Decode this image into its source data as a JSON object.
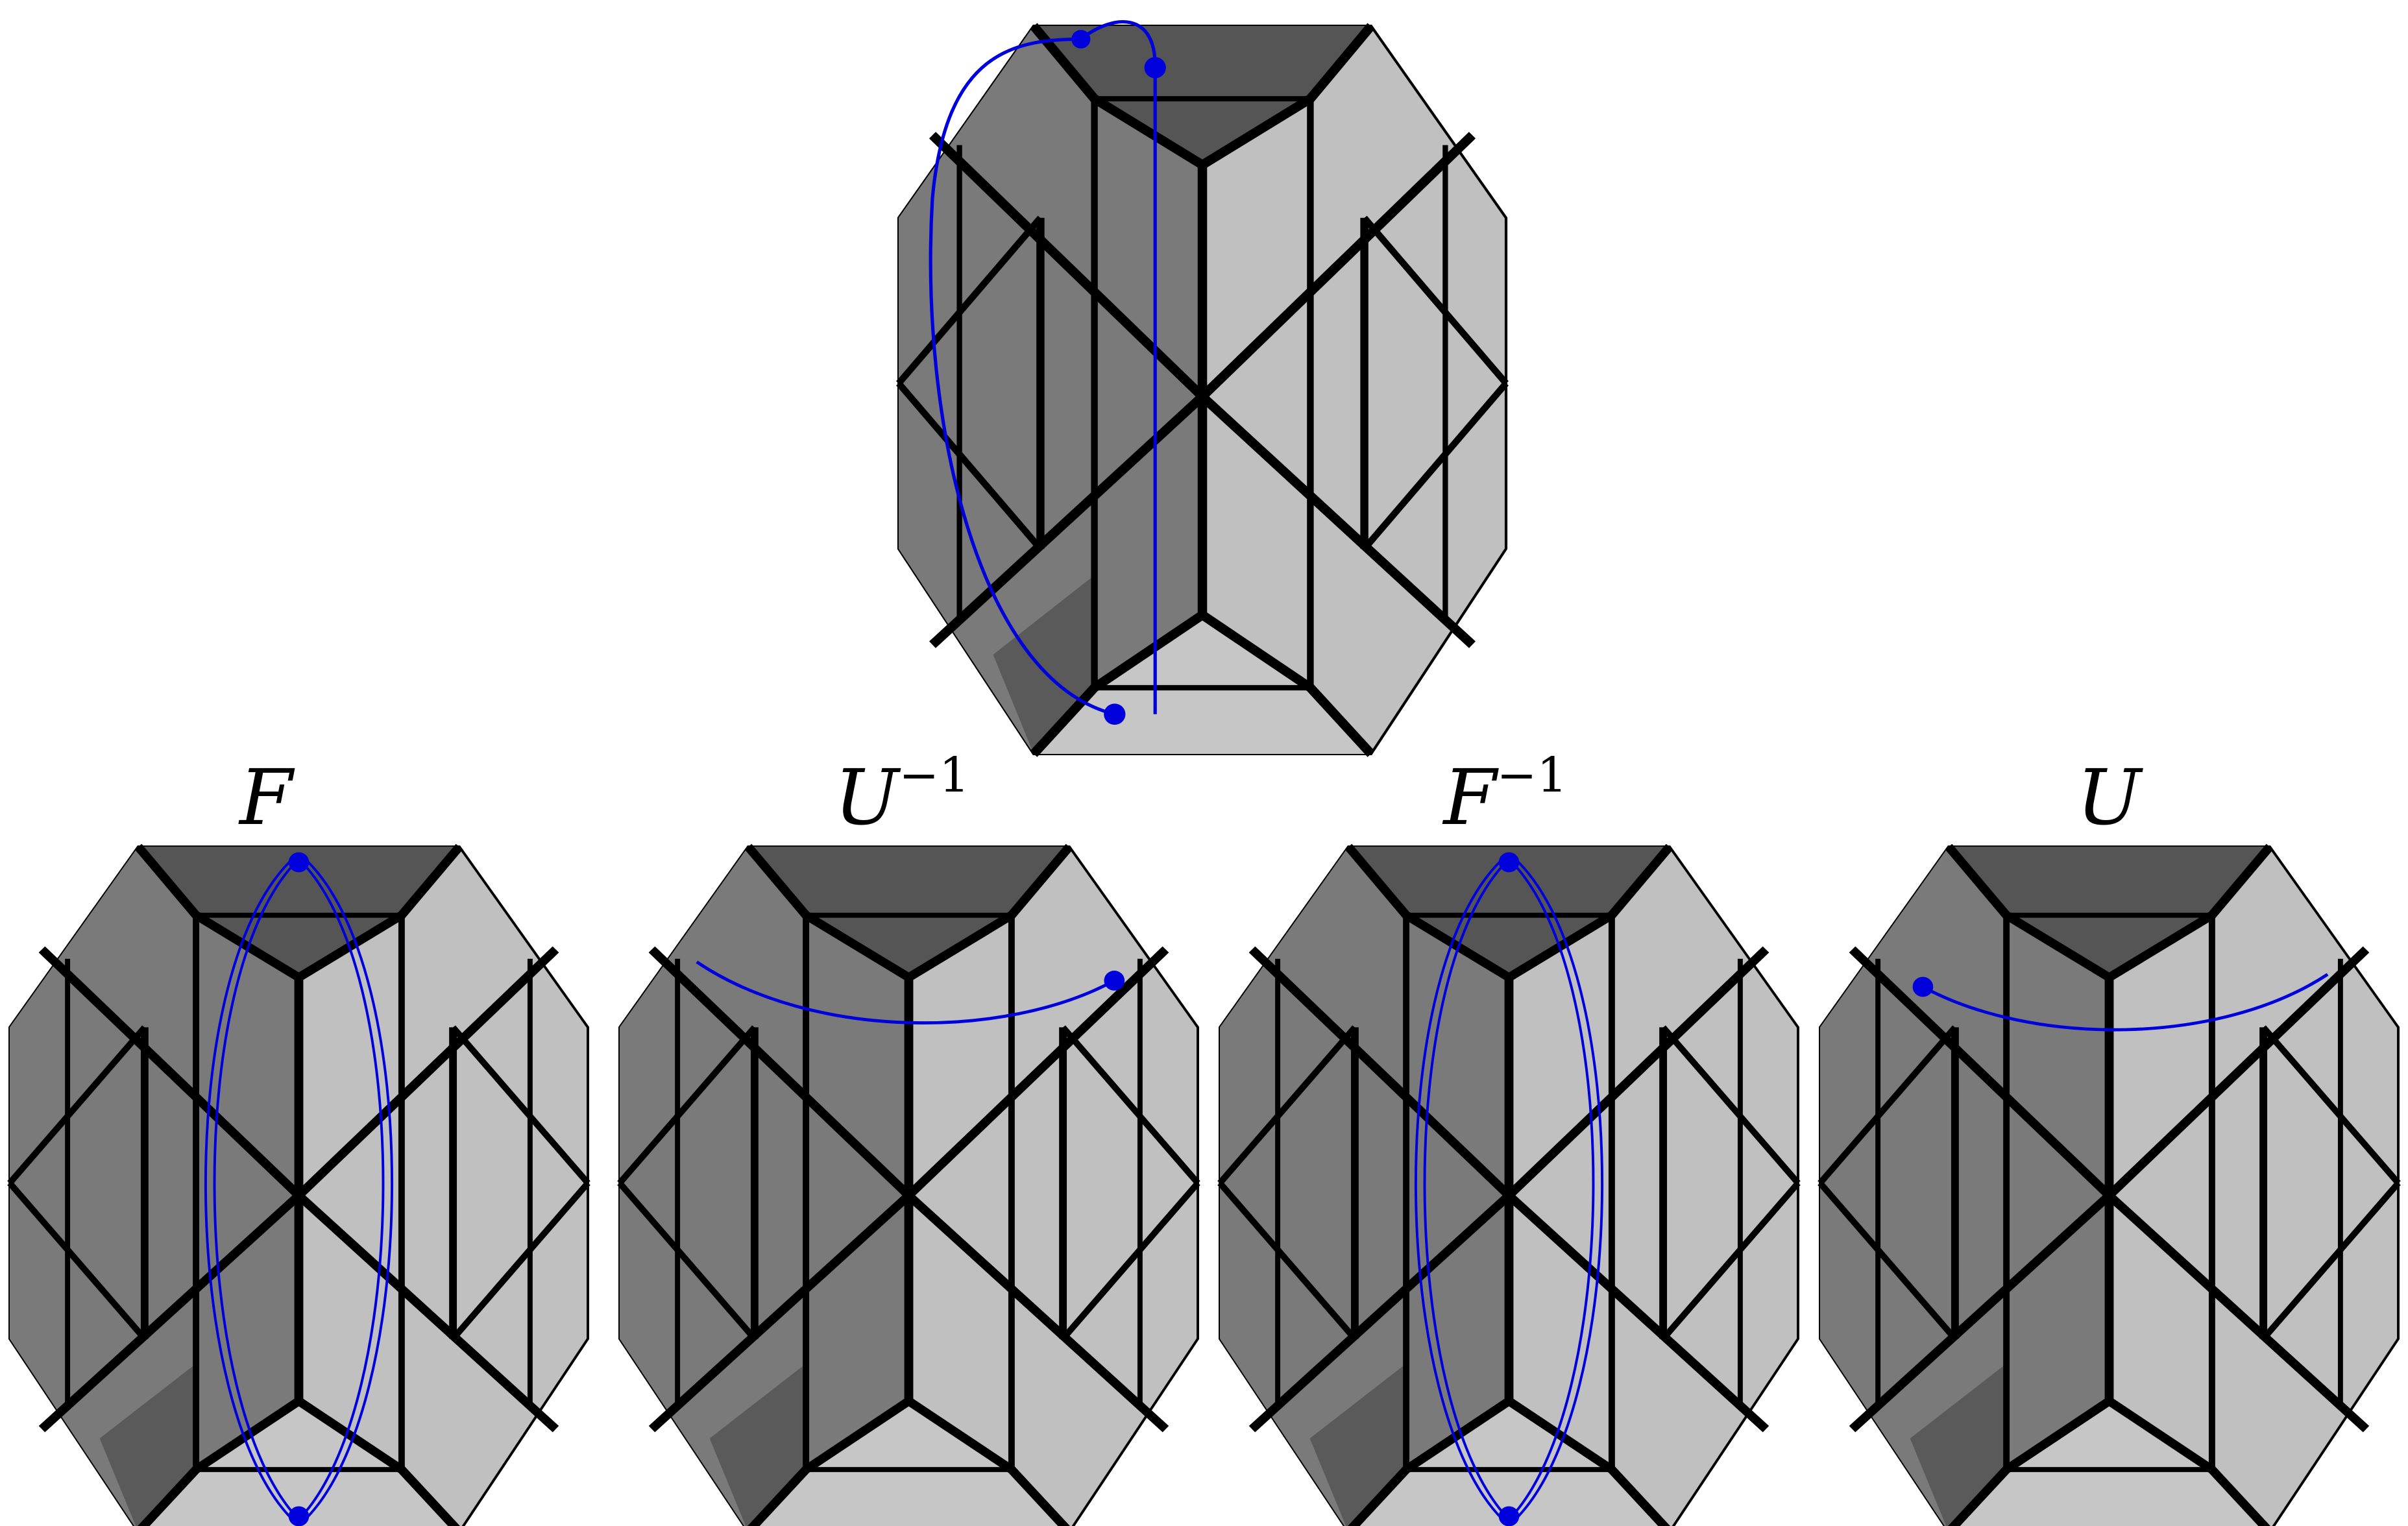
{
  "figure": {
    "title": "",
    "colors": {
      "face_dark": "#4d4d4d",
      "face_mid": "#7a7a7a",
      "face_light": "#c0c0c0",
      "edge": "#000000",
      "path": "#0000dd",
      "background": "#ffffff"
    },
    "panels": [
      {
        "id": "initial",
        "label_base": "",
        "label_exp": "",
        "path": "initial-loop"
      },
      {
        "id": "move-f",
        "label_base": "F",
        "label_exp": "",
        "path": "vertical-loop"
      },
      {
        "id": "move-u-inv",
        "label_base": "U",
        "label_exp": "−1",
        "path": "horizontal-arc-right"
      },
      {
        "id": "move-f-inv",
        "label_base": "F",
        "label_exp": "−1",
        "path": "vertical-loop"
      },
      {
        "id": "move-u",
        "label_base": "U",
        "label_exp": "",
        "path": "horizontal-arc-left"
      }
    ]
  }
}
